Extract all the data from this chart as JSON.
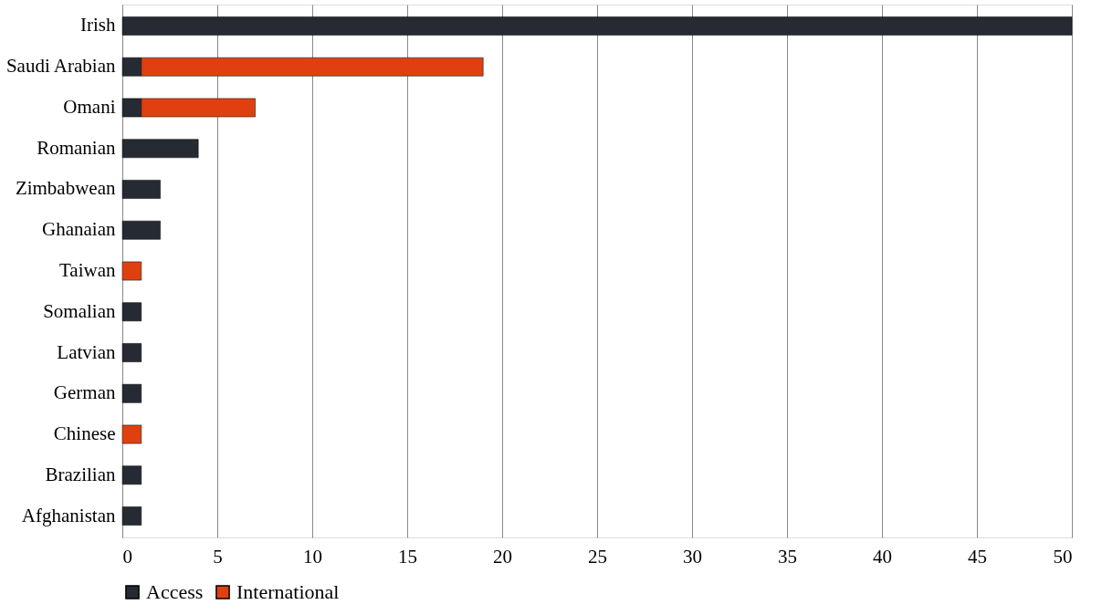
{
  "chart_data": {
    "type": "bar",
    "orientation": "horizontal",
    "stacked": true,
    "categories": [
      "Irish",
      "Saudi Arabian",
      "Omani",
      "Romanian",
      "Zimbabwean",
      "Ghanaian",
      "Taiwan",
      "Somalian",
      "Latvian",
      "German",
      "Chinese",
      "Brazilian",
      "Afghanistan"
    ],
    "series": [
      {
        "name": "Access",
        "color": "#262a33",
        "values": [
          50,
          1,
          1,
          4,
          2,
          2,
          null,
          1,
          1,
          1,
          null,
          1,
          1
        ]
      },
      {
        "name": "International",
        "color": "#e0400f",
        "values": [
          null,
          18,
          6,
          null,
          null,
          null,
          1,
          null,
          null,
          null,
          1,
          null,
          null
        ]
      }
    ],
    "xlim": [
      0,
      50
    ],
    "xticks": [
      0,
      5,
      10,
      15,
      20,
      25,
      30,
      35,
      40,
      45,
      50
    ],
    "grid": "x",
    "legend": "bottom"
  }
}
